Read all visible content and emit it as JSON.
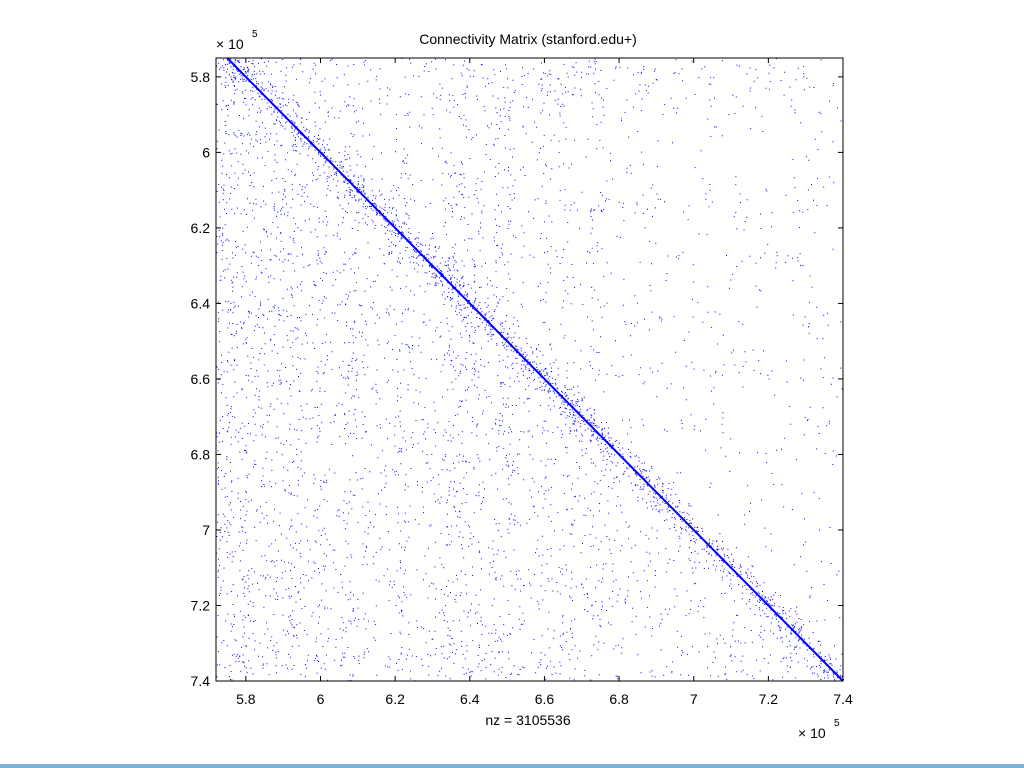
{
  "chart_data": {
    "type": "scatter",
    "title": "Connectivity Matrix (stanford.edu+)",
    "xlabel": "nz = 3105536",
    "ylabel": "",
    "x_exponent_label": "× 10",
    "y_exponent_label": "× 10",
    "exponent": "5",
    "xlim": [
      5.72,
      7.4
    ],
    "ylim": [
      5.75,
      7.4
    ],
    "y_reversed": true,
    "x_ticks": [
      5.8,
      6,
      6.2,
      6.4,
      6.6,
      6.8,
      7,
      7.2,
      7.4
    ],
    "y_ticks": [
      5.8,
      6,
      6.2,
      6.4,
      6.6,
      6.8,
      7,
      7.2,
      7.4
    ],
    "x_tick_labels": [
      "5.8",
      "6",
      "6.2",
      "6.4",
      "6.6",
      "6.8",
      "7",
      "7.2",
      "7.4"
    ],
    "y_tick_labels": [
      "5.8",
      "6",
      "6.2",
      "6.4",
      "6.6",
      "6.8",
      "7",
      "7.2",
      "7.4"
    ],
    "grid": false,
    "legend": "none",
    "marker_color": "#0000ff",
    "diagonal": {
      "from": [
        5.75,
        5.75
      ],
      "to": [
        7.4,
        7.4
      ]
    },
    "dense_column_bands": [
      [
        5.72,
        5.95
      ],
      [
        5.98,
        6.02
      ],
      [
        6.06,
        6.12
      ],
      [
        6.2,
        6.24
      ],
      [
        6.32,
        6.44
      ],
      [
        6.46,
        6.52
      ],
      [
        6.58,
        6.62
      ],
      [
        6.64,
        6.68
      ],
      [
        6.72,
        6.76
      ]
    ],
    "dense_row_bands": [
      [
        5.75,
        5.9
      ],
      [
        6.12,
        6.16
      ],
      [
        6.26,
        6.3
      ],
      [
        6.42,
        6.46
      ],
      [
        6.56,
        6.6
      ],
      [
        6.7,
        6.74
      ]
    ]
  }
}
